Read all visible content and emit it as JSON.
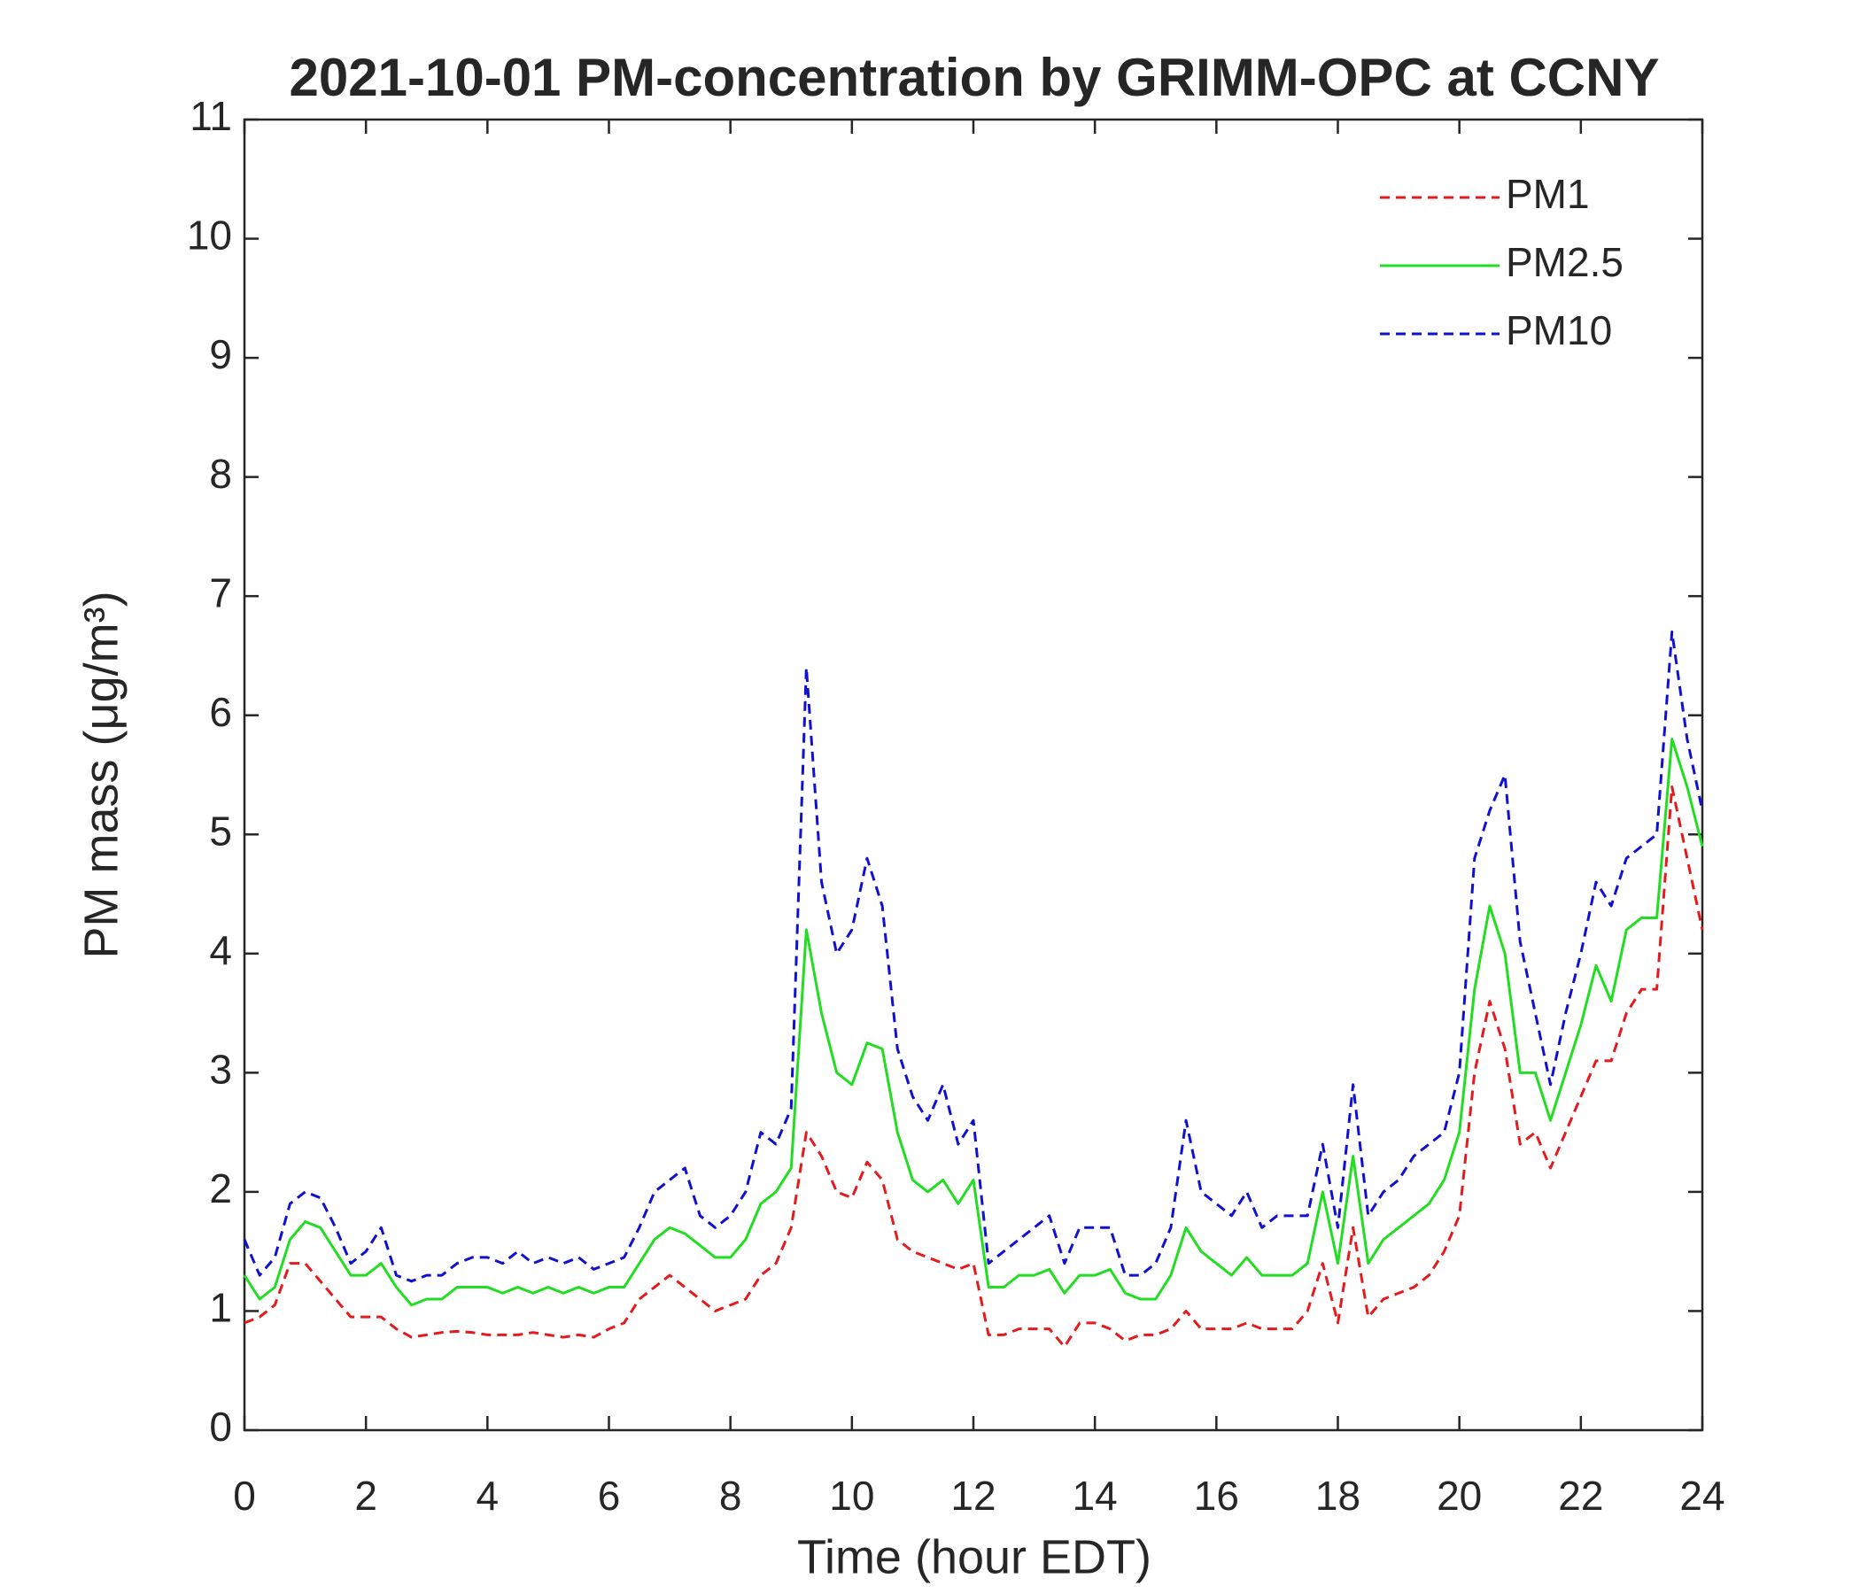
{
  "chart_data": {
    "type": "line",
    "title": "2021-10-01 PM-concentration by GRIMM-OPC at CCNY",
    "x_label": "Time (hour EDT)",
    "y_label": "PM mass (μg/m³)",
    "xlim": [
      0,
      24
    ],
    "ylim": [
      0,
      11
    ],
    "xticks": [
      0,
      2,
      4,
      6,
      8,
      10,
      12,
      14,
      16,
      18,
      20,
      22,
      24
    ],
    "yticks": [
      0,
      1,
      2,
      3,
      4,
      5,
      6,
      7,
      8,
      9,
      10,
      11
    ],
    "legend": "upper right",
    "x": [
      0,
      0.25,
      0.5,
      0.75,
      1,
      1.25,
      1.5,
      1.75,
      2,
      2.25,
      2.5,
      2.75,
      3,
      3.25,
      3.5,
      3.75,
      4,
      4.25,
      4.5,
      4.75,
      5,
      5.25,
      5.5,
      5.75,
      6,
      6.25,
      6.5,
      6.75,
      7,
      7.25,
      7.5,
      7.75,
      8,
      8.25,
      8.5,
      8.75,
      9,
      9.25,
      9.5,
      9.75,
      10,
      10.25,
      10.5,
      10.75,
      11,
      11.25,
      11.5,
      11.75,
      12,
      12.25,
      12.5,
      12.75,
      13,
      13.25,
      13.5,
      13.75,
      14,
      14.25,
      14.5,
      14.75,
      15,
      15.25,
      15.5,
      15.75,
      16,
      16.25,
      16.5,
      16.75,
      17,
      17.25,
      17.5,
      17.75,
      18,
      18.25,
      18.5,
      18.75,
      19,
      19.25,
      19.5,
      19.75,
      20,
      20.25,
      20.5,
      20.75,
      21,
      21.25,
      21.5,
      21.75,
      22,
      22.25,
      22.5,
      22.75,
      23,
      23.25,
      23.5,
      23.75,
      24
    ],
    "series": [
      {
        "name": "PM1",
        "color": "#e41a1c",
        "dash": true,
        "values": [
          0.9,
          0.95,
          1.05,
          1.4,
          1.4,
          1.25,
          1.1,
          0.95,
          0.95,
          0.95,
          0.85,
          0.78,
          0.8,
          0.82,
          0.83,
          0.82,
          0.8,
          0.8,
          0.8,
          0.82,
          0.8,
          0.78,
          0.8,
          0.78,
          0.85,
          0.9,
          1.1,
          1.2,
          1.3,
          1.2,
          1.1,
          1.0,
          1.05,
          1.1,
          1.3,
          1.4,
          1.7,
          2.5,
          2.3,
          2.0,
          1.95,
          2.25,
          2.1,
          1.6,
          1.5,
          1.45,
          1.4,
          1.35,
          1.4,
          0.8,
          0.8,
          0.85,
          0.85,
          0.85,
          0.7,
          0.9,
          0.9,
          0.85,
          0.75,
          0.8,
          0.8,
          0.85,
          1.0,
          0.85,
          0.85,
          0.85,
          0.9,
          0.85,
          0.85,
          0.85,
          1.0,
          1.4,
          0.9,
          1.7,
          0.95,
          1.1,
          1.15,
          1.2,
          1.3,
          1.5,
          1.8,
          3.0,
          3.6,
          3.2,
          2.4,
          2.5,
          2.2,
          2.5,
          2.8,
          3.1,
          3.1,
          3.5,
          3.7,
          3.7,
          5.4,
          4.8,
          4.2
        ]
      },
      {
        "name": "PM2.5",
        "color": "#22dd22",
        "dash": false,
        "values": [
          1.3,
          1.1,
          1.2,
          1.6,
          1.75,
          1.7,
          1.5,
          1.3,
          1.3,
          1.4,
          1.2,
          1.05,
          1.1,
          1.1,
          1.2,
          1.2,
          1.2,
          1.15,
          1.2,
          1.15,
          1.2,
          1.15,
          1.2,
          1.15,
          1.2,
          1.2,
          1.4,
          1.6,
          1.7,
          1.65,
          1.55,
          1.45,
          1.45,
          1.6,
          1.9,
          2.0,
          2.2,
          4.2,
          3.5,
          3.0,
          2.9,
          3.25,
          3.2,
          2.5,
          2.1,
          2.0,
          2.1,
          1.9,
          2.1,
          1.2,
          1.2,
          1.3,
          1.3,
          1.35,
          1.15,
          1.3,
          1.3,
          1.35,
          1.15,
          1.1,
          1.1,
          1.3,
          1.7,
          1.5,
          1.4,
          1.3,
          1.45,
          1.3,
          1.3,
          1.3,
          1.4,
          2.0,
          1.4,
          2.3,
          1.4,
          1.6,
          1.7,
          1.8,
          1.9,
          2.1,
          2.5,
          3.7,
          4.4,
          4.0,
          3.0,
          3.0,
          2.6,
          3.0,
          3.4,
          3.9,
          3.6,
          4.2,
          4.3,
          4.3,
          5.8,
          5.4,
          4.9
        ]
      },
      {
        "name": "PM10",
        "color": "#1010d0",
        "dash": true,
        "values": [
          1.6,
          1.3,
          1.45,
          1.9,
          2.0,
          1.95,
          1.7,
          1.4,
          1.5,
          1.7,
          1.3,
          1.25,
          1.3,
          1.3,
          1.4,
          1.45,
          1.45,
          1.4,
          1.5,
          1.4,
          1.45,
          1.4,
          1.45,
          1.35,
          1.4,
          1.45,
          1.7,
          2.0,
          2.1,
          2.2,
          1.8,
          1.7,
          1.8,
          2.0,
          2.5,
          2.4,
          2.7,
          6.4,
          4.6,
          4.0,
          4.2,
          4.8,
          4.4,
          3.2,
          2.8,
          2.6,
          2.9,
          2.4,
          2.6,
          1.4,
          1.5,
          1.6,
          1.7,
          1.8,
          1.4,
          1.7,
          1.7,
          1.7,
          1.3,
          1.3,
          1.4,
          1.7,
          2.6,
          2.0,
          1.9,
          1.8,
          2.0,
          1.7,
          1.8,
          1.8,
          1.8,
          2.4,
          1.7,
          2.9,
          1.8,
          2.0,
          2.1,
          2.3,
          2.4,
          2.5,
          3.0,
          4.8,
          5.2,
          5.5,
          4.1,
          3.5,
          2.9,
          3.5,
          4.0,
          4.6,
          4.4,
          4.8,
          4.9,
          5.0,
          6.7,
          5.8,
          5.2
        ]
      }
    ]
  }
}
